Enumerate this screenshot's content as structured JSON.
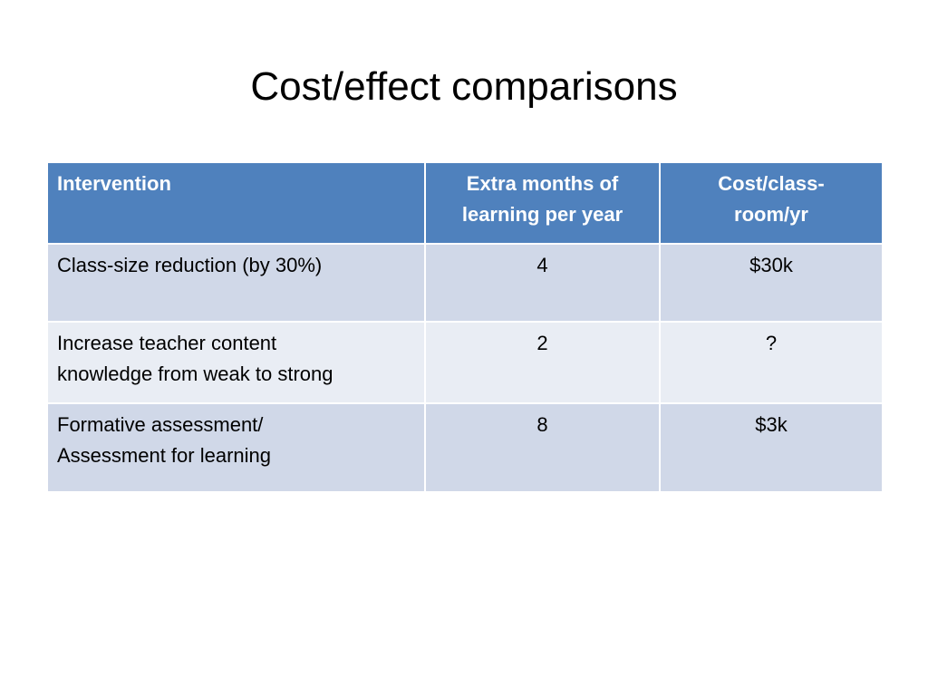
{
  "slide": {
    "title": "Cost/effect comparisons"
  },
  "table": {
    "headers": {
      "col1_line1": "Intervention",
      "col2_line1": "Extra months of",
      "col2_line2": "learning per year",
      "col3_line1": "Cost/class-",
      "col3_line2": "room/yr"
    },
    "rows": [
      {
        "intervention_line1": "Class-size reduction (by 30%)",
        "intervention_line2": "",
        "months": "4",
        "cost": "$30k"
      },
      {
        "intervention_line1": "Increase teacher content",
        "intervention_line2": "knowledge from weak to strong",
        "months": "2",
        "cost": "?"
      },
      {
        "intervention_line1": "Formative assessment/",
        "intervention_line2": "Assessment for learning",
        "months": "8",
        "cost": "$3k"
      }
    ]
  },
  "colors": {
    "header_bg": "#4f81bd",
    "row_dark": "#d0d8e8",
    "row_light": "#e9edf4"
  }
}
